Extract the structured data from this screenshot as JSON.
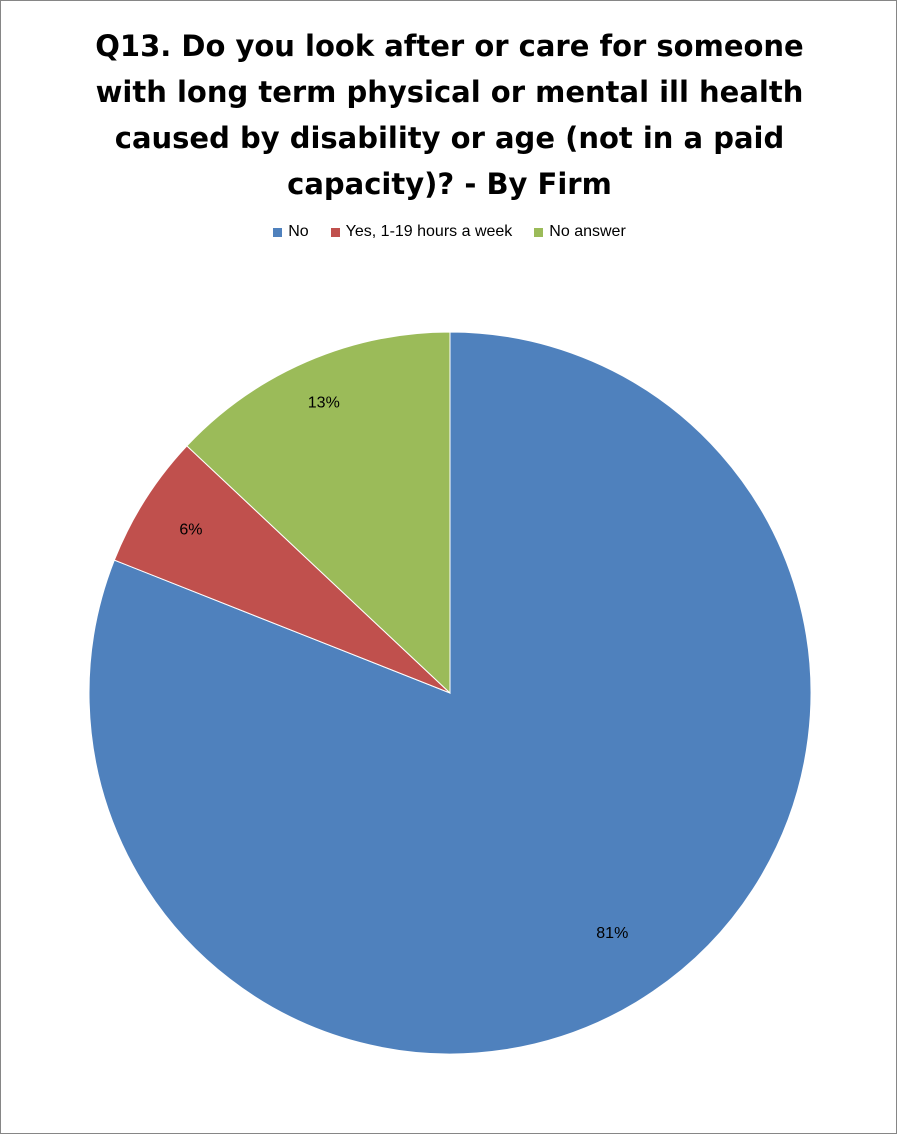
{
  "chart_data": {
    "type": "pie",
    "title": "Q13.  Do you look after or care for someone\nwith long term physical or mental ill health\ncaused by disability or age (not in a paid\ncapacity)? - By Firm",
    "legend_position": "top",
    "slices": [
      {
        "name": "No",
        "value": 81,
        "label": "81%",
        "color": "#4F81BD"
      },
      {
        "name": "Yes, 1-19 hours a week",
        "value": 6,
        "label": "6%",
        "color": "#C0504D"
      },
      {
        "name": "No answer",
        "value": 13,
        "label": "13%",
        "color": "#9BBB59"
      }
    ]
  }
}
